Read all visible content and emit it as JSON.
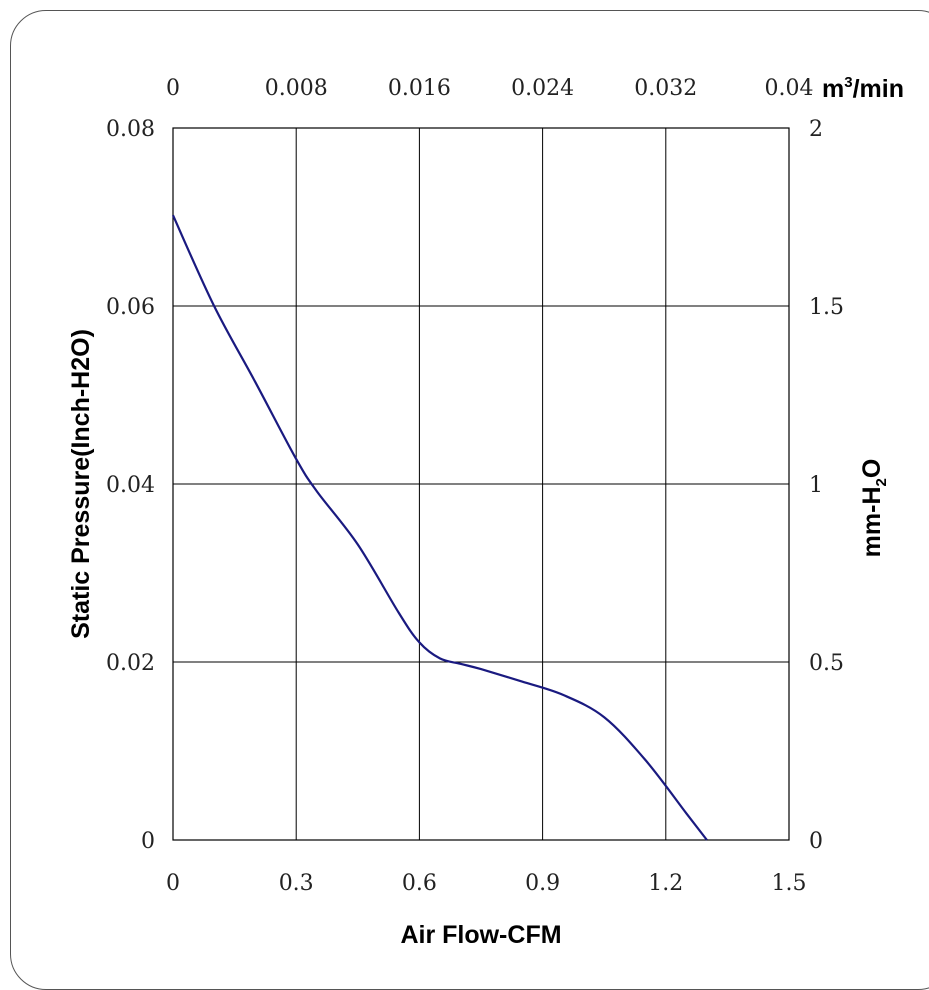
{
  "chart_data": {
    "type": "line",
    "title": "",
    "xlabel": "Air Flow-CFM",
    "ylabel": "Static Pressure(Inch-H2O)",
    "xlim": [
      0,
      1.5
    ],
    "ylim": [
      0,
      0.08
    ],
    "x_ticks": [
      "0",
      "0.3",
      "0.6",
      "0.9",
      "1.2",
      "1.5"
    ],
    "y_ticks": [
      "0",
      "0.02",
      "0.04",
      "0.06",
      "0.08"
    ],
    "top_axis": {
      "label_base": "m",
      "label_sup": "3",
      "label_rest": "/min",
      "range": [
        0,
        0.04
      ],
      "ticks": [
        "0",
        "0.008",
        "0.016",
        "0.024",
        "0.032",
        "0.04"
      ]
    },
    "right_axis": {
      "label_base": "mm-H",
      "label_sub": "2",
      "label_rest": "O",
      "range": [
        0,
        2
      ],
      "ticks": [
        "0",
        "0.5",
        "1",
        "1.5",
        "2"
      ]
    },
    "grid": true,
    "series": [
      {
        "color": "#1a1a80",
        "points": [
          [
            0.0,
            0.0702
          ],
          [
            0.1,
            0.06
          ],
          [
            0.2,
            0.0515
          ],
          [
            0.3,
            0.0428
          ],
          [
            0.35,
            0.0392
          ],
          [
            0.45,
            0.0332
          ],
          [
            0.55,
            0.0255
          ],
          [
            0.6,
            0.0222
          ],
          [
            0.65,
            0.0204
          ],
          [
            0.7,
            0.0198
          ],
          [
            0.75,
            0.0192
          ],
          [
            0.85,
            0.0178
          ],
          [
            0.95,
            0.0163
          ],
          [
            1.05,
            0.0138
          ],
          [
            1.15,
            0.009
          ],
          [
            1.25,
            0.003
          ],
          [
            1.3,
            0.0
          ]
        ]
      }
    ]
  }
}
